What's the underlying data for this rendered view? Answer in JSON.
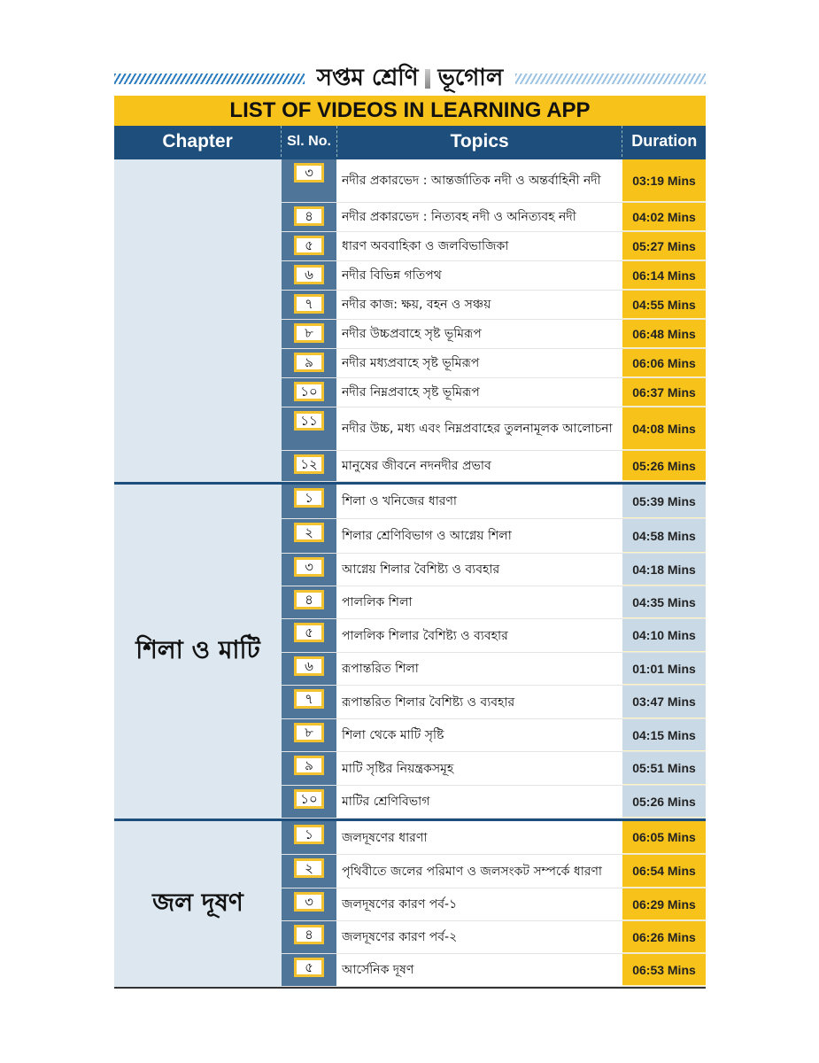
{
  "page_heading": {
    "class": "সপ্তম শ্রেণি",
    "subject": "ভূগোল"
  },
  "banner": "LIST OF VIDEOS IN LEARNING APP",
  "columns": {
    "chapter": "Chapter",
    "sl_no": "Sl. No.",
    "topics": "Topics",
    "duration": "Duration"
  },
  "colors": {
    "banner": "#f7c21a",
    "header": "#1e4f7c",
    "chapter_bg": "#dce7ef",
    "sl_bg": "#4f7699"
  },
  "groups": [
    {
      "chapter": "",
      "rows": [
        {
          "sl": "৩",
          "topic": "নদীর প্রকারভেদ : আন্তর্জাতিক নদী ও অন্তর্বাহিনী নদী",
          "duration": "03:19 Mins"
        },
        {
          "sl": "৪",
          "topic": "নদীর প্রকারভেদ : নিত্যবহ নদী ও অনিত্যবহ নদী",
          "duration": "04:02 Mins"
        },
        {
          "sl": "৫",
          "topic": "ধারণ অববাহিকা ও জলবিভাজিকা",
          "duration": "05:27 Mins"
        },
        {
          "sl": "৬",
          "topic": "নদীর বিভিন্ন গতিপথ",
          "duration": "06:14 Mins"
        },
        {
          "sl": "৭",
          "topic": "নদীর কাজ: ক্ষয়, বহন ও সঞ্চয়",
          "duration": "04:55 Mins"
        },
        {
          "sl": "৮",
          "topic": "নদীর উচ্চপ্রবাহে সৃষ্ট ভূমিরূপ",
          "duration": "06:48 Mins"
        },
        {
          "sl": "৯",
          "topic": "নদীর মধ্যপ্রবাহে সৃষ্ট ভূমিরূপ",
          "duration": "06:06 Mins"
        },
        {
          "sl": "১০",
          "topic": "নদীর নিম্নপ্রবাহে সৃষ্ট ভূমিরূপ",
          "duration": "06:37 Mins"
        },
        {
          "sl": "১১",
          "topic": "নদীর উচ্চ, মধ্য এবং নিম্নপ্রবাহের তুলনামূলক আলোচনা",
          "duration": "04:08 Mins"
        },
        {
          "sl": "১২",
          "topic": "মানুষের জীবনে নদনদীর প্রভাব",
          "duration": "05:26 Mins"
        }
      ]
    },
    {
      "chapter": "শিলা ও মাটি",
      "rows": [
        {
          "sl": "১",
          "topic": "শিলা ও খনিজের ধারণা",
          "duration": "05:39 Mins"
        },
        {
          "sl": "২",
          "topic": "শিলার শ্রেণিবিভাগ ও আগ্নেয় শিলা",
          "duration": "04:58 Mins"
        },
        {
          "sl": "৩",
          "topic": "আগ্নেয় শিলার বৈশিষ্ট্য ও ব্যবহার",
          "duration": "04:18 Mins"
        },
        {
          "sl": "৪",
          "topic": "পাললিক শিলা",
          "duration": "04:35 Mins"
        },
        {
          "sl": "৫",
          "topic": "পাললিক শিলার বৈশিষ্ট্য ও ব্যবহার",
          "duration": "04:10 Mins"
        },
        {
          "sl": "৬",
          "topic": "রূপান্তরিত শিলা",
          "duration": "01:01 Mins"
        },
        {
          "sl": "৭",
          "topic": "রূপান্তরিত শিলার বৈশিষ্ট্য ও ব্যবহার",
          "duration": "03:47 Mins"
        },
        {
          "sl": "৮",
          "topic": "শিলা থেকে মাটি সৃষ্টি",
          "duration": "04:15 Mins"
        },
        {
          "sl": "৯",
          "topic": "মাটি সৃষ্টির নিয়ন্ত্রকসমূহ",
          "duration": "05:51 Mins"
        },
        {
          "sl": "১০",
          "topic": "মাটির শ্রেণিবিভাগ",
          "duration": "05:26 Mins"
        }
      ]
    },
    {
      "chapter": "জল দূষণ",
      "rows": [
        {
          "sl": "১",
          "topic": "জলদূষণের ধারণা",
          "duration": "06:05 Mins"
        },
        {
          "sl": "২",
          "topic": "পৃথিবীতে জলের পরিমাণ ও জলসংকট সম্পর্কে ধারণা",
          "duration": "06:54 Mins"
        },
        {
          "sl": "৩",
          "topic": "জলদূষণের কারণ পর্ব-১",
          "duration": "06:29 Mins"
        },
        {
          "sl": "৪",
          "topic": "জলদূষণের কারণ পর্ব-২",
          "duration": "06:26 Mins"
        },
        {
          "sl": "৫",
          "topic": "আর্সেনিক দূষণ",
          "duration": "06:53 Mins"
        }
      ]
    }
  ]
}
